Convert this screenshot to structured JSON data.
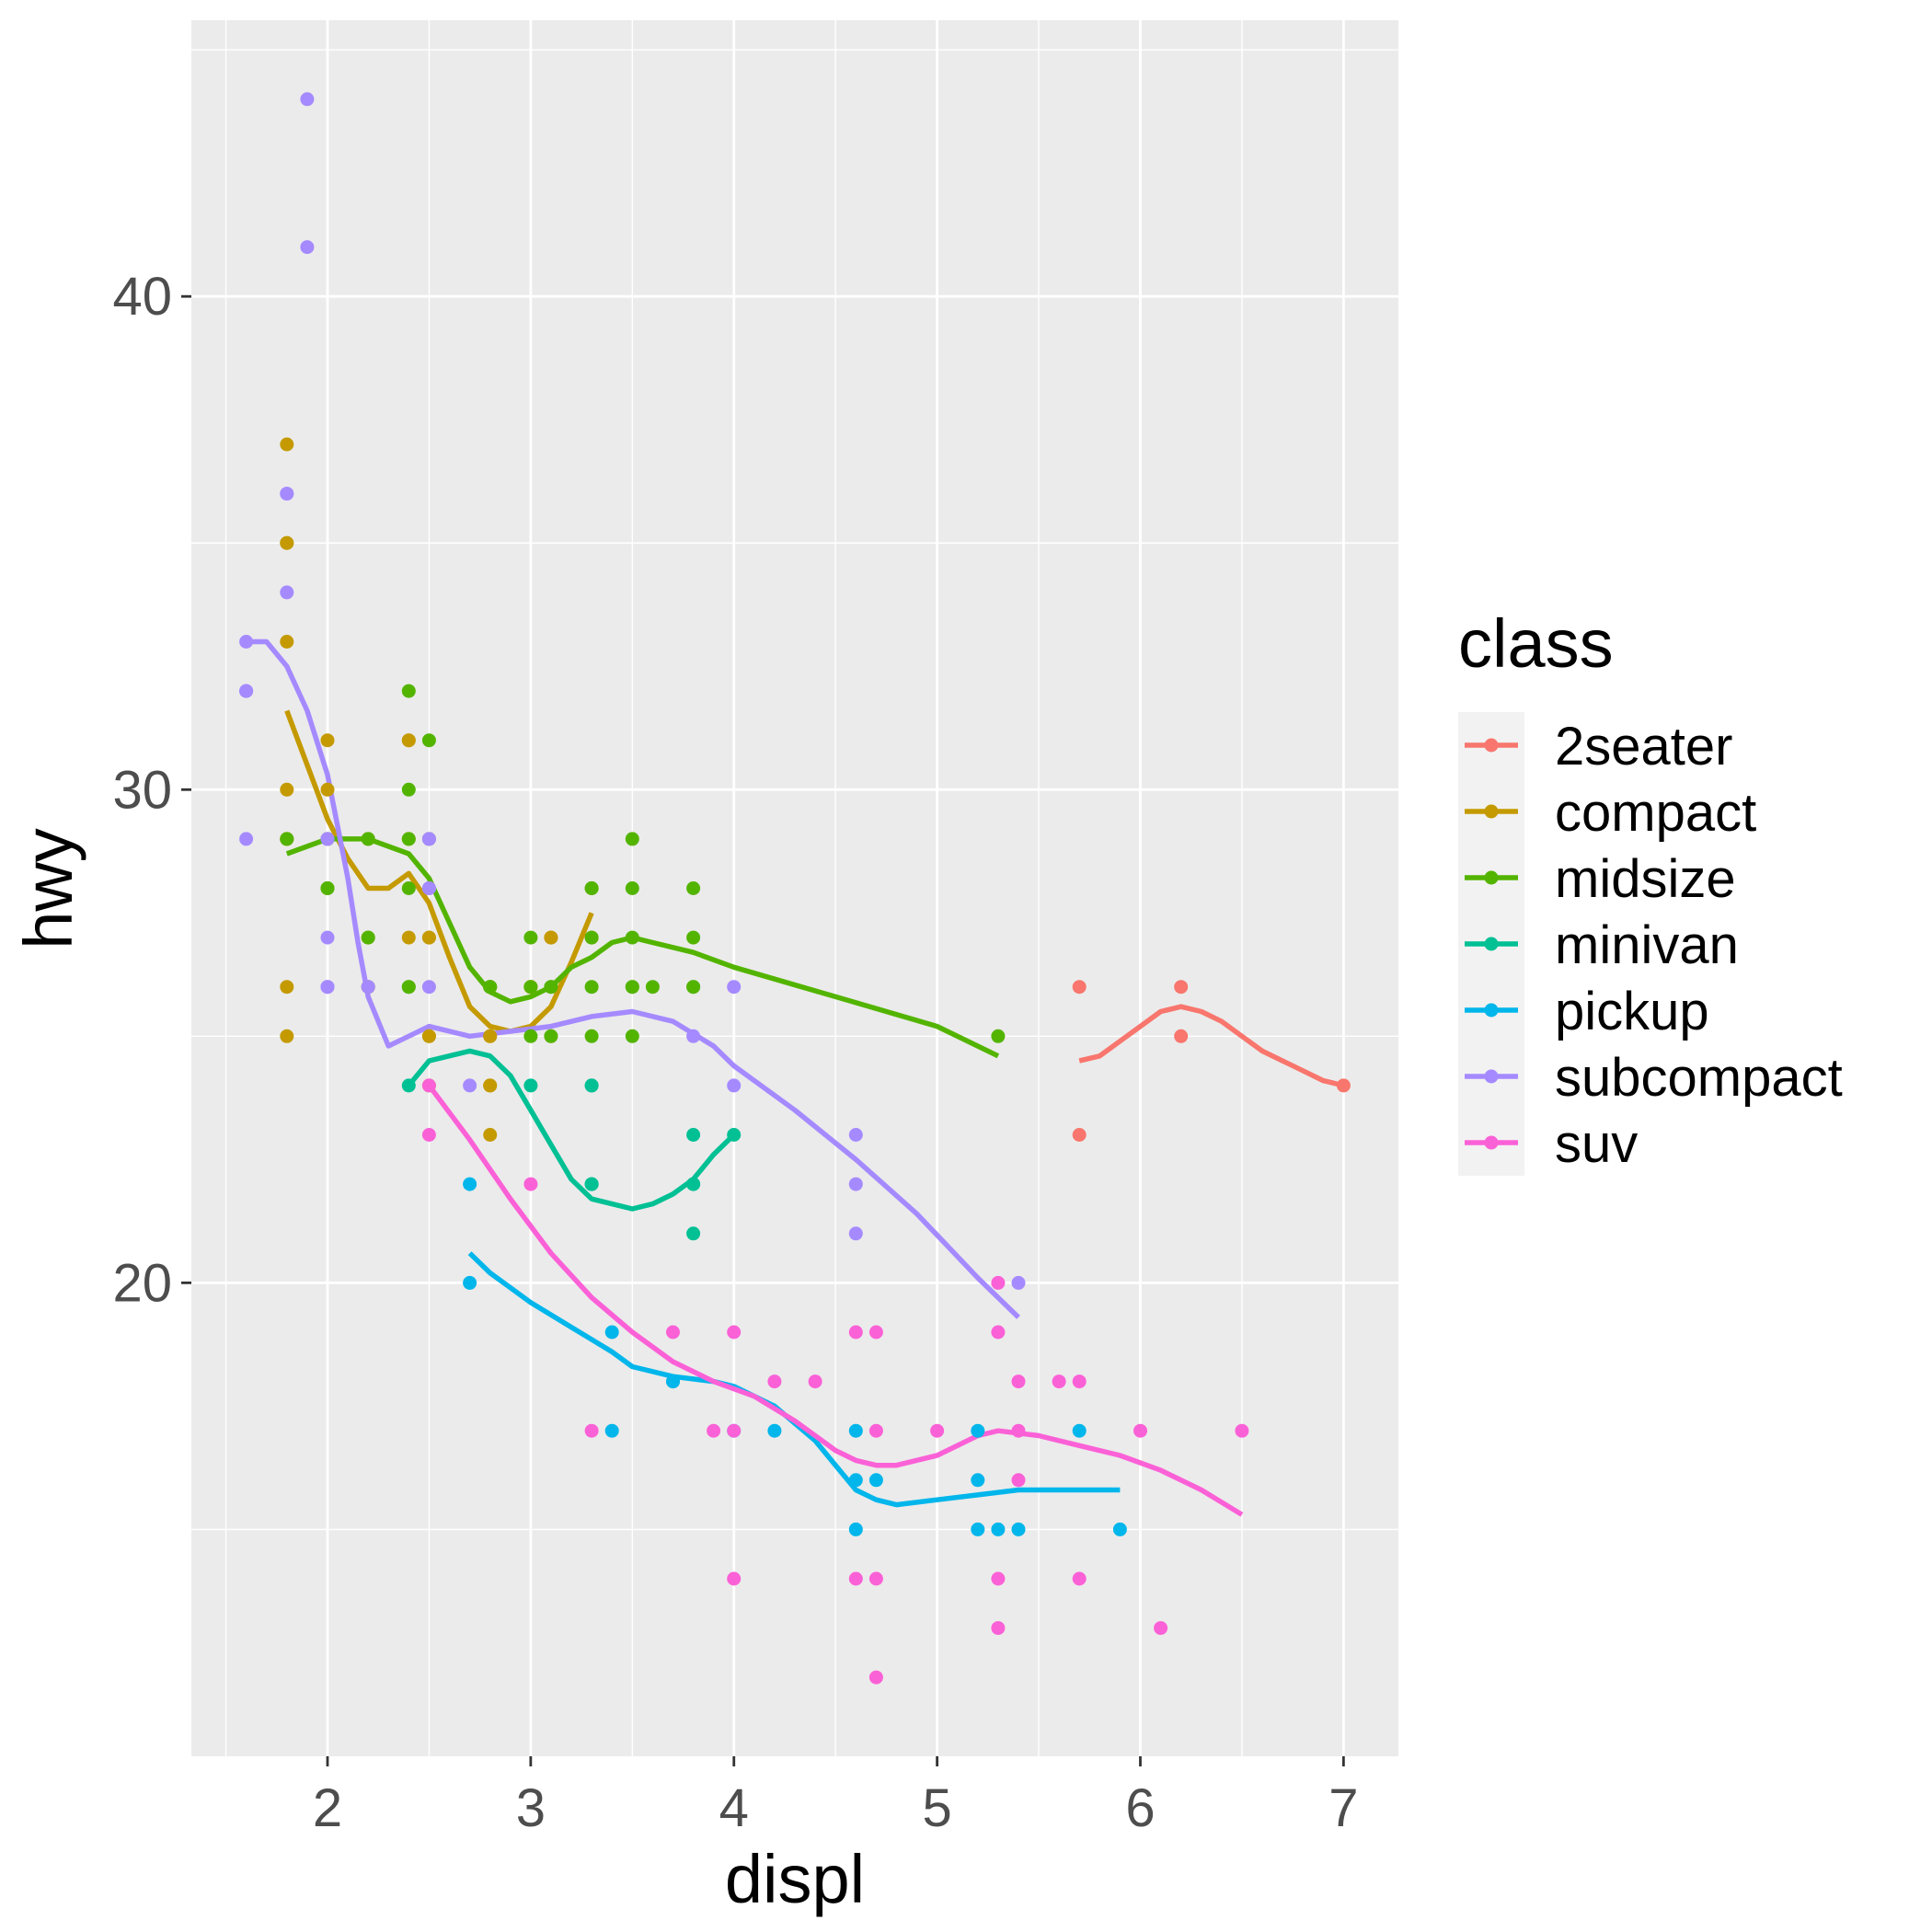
{
  "chart_data": {
    "type": "scatter",
    "xlabel": "displ",
    "ylabel": "hwy",
    "xlim": [
      1.33,
      7.27
    ],
    "ylim": [
      10.4,
      45.6
    ],
    "x_ticks": [
      2,
      3,
      4,
      5,
      6,
      7
    ],
    "y_ticks": [
      20,
      30,
      40
    ],
    "grid": true,
    "legend": {
      "title": "class",
      "position": "right",
      "entries": [
        "2seater",
        "compact",
        "midsize",
        "minivan",
        "pickup",
        "subcompact",
        "suv"
      ]
    },
    "series": [
      {
        "name": "2seater",
        "color": "#F8766D",
        "points": [
          [
            5.7,
            26
          ],
          [
            5.7,
            23
          ],
          [
            6.2,
            26
          ],
          [
            6.2,
            25
          ],
          [
            7.0,
            24
          ]
        ],
        "smooth": [
          [
            5.7,
            24.5
          ],
          [
            5.8,
            24.6
          ],
          [
            5.9,
            24.9
          ],
          [
            6.0,
            25.2
          ],
          [
            6.1,
            25.5
          ],
          [
            6.2,
            25.6
          ],
          [
            6.3,
            25.5
          ],
          [
            6.4,
            25.3
          ],
          [
            6.5,
            25.0
          ],
          [
            6.6,
            24.7
          ],
          [
            6.7,
            24.5
          ],
          [
            6.8,
            24.3
          ],
          [
            6.9,
            24.1
          ],
          [
            7.0,
            24.0
          ]
        ]
      },
      {
        "name": "compact",
        "color": "#C49A00",
        "points": [
          [
            1.8,
            29
          ],
          [
            1.8,
            29
          ],
          [
            2.0,
            31
          ],
          [
            2.0,
            30
          ],
          [
            2.8,
            26
          ],
          [
            2.8,
            26
          ],
          [
            3.1,
            27
          ],
          [
            1.8,
            26
          ],
          [
            1.8,
            25
          ],
          [
            2.0,
            28
          ],
          [
            2.0,
            29
          ],
          [
            2.8,
            25
          ],
          [
            2.8,
            25
          ],
          [
            3.1,
            25
          ],
          [
            2.2,
            27
          ],
          [
            2.2,
            29
          ],
          [
            2.4,
            31
          ],
          [
            2.4,
            31
          ],
          [
            3.0,
            26
          ],
          [
            3.3,
            28
          ],
          [
            3.3,
            27
          ],
          [
            1.8,
            35
          ],
          [
            1.8,
            37
          ],
          [
            1.8,
            35
          ],
          [
            2.4,
            29
          ],
          [
            2.4,
            27
          ],
          [
            2.5,
            27
          ],
          [
            2.5,
            25
          ],
          [
            2.5,
            24
          ],
          [
            2.5,
            25
          ],
          [
            2.8,
            23
          ],
          [
            2.8,
            24
          ],
          [
            3.0,
            26
          ],
          [
            3.0,
            26
          ],
          [
            2.2,
            26
          ],
          [
            2.2,
            26
          ],
          [
            2.5,
            27
          ],
          [
            2.8,
            24
          ],
          [
            3.1,
            27
          ],
          [
            1.8,
            33
          ],
          [
            1.8,
            30
          ]
        ],
        "smooth": [
          [
            1.8,
            31.6
          ],
          [
            1.9,
            30.5
          ],
          [
            2.0,
            29.4
          ],
          [
            2.1,
            28.6
          ],
          [
            2.2,
            28.0
          ],
          [
            2.3,
            28.0
          ],
          [
            2.4,
            28.3
          ],
          [
            2.5,
            27.7
          ],
          [
            2.6,
            26.6
          ],
          [
            2.7,
            25.6
          ],
          [
            2.8,
            25.2
          ],
          [
            2.9,
            25.1
          ],
          [
            3.0,
            25.2
          ],
          [
            3.1,
            25.6
          ],
          [
            3.2,
            26.5
          ],
          [
            3.3,
            27.5
          ]
        ]
      },
      {
        "name": "midsize",
        "color": "#53B400",
        "points": [
          [
            2.4,
            30
          ],
          [
            2.4,
            29
          ],
          [
            3.1,
            26
          ],
          [
            3.5,
            26
          ],
          [
            3.6,
            26
          ],
          [
            2.4,
            32
          ],
          [
            3.0,
            26
          ],
          [
            3.3,
            28
          ],
          [
            3.3,
            27
          ],
          [
            3.5,
            29
          ],
          [
            2.0,
            28
          ],
          [
            2.0,
            29
          ],
          [
            2.8,
            26
          ],
          [
            3.5,
            28
          ],
          [
            1.8,
            29
          ],
          [
            2.0,
            28
          ],
          [
            2.8,
            26
          ],
          [
            3.1,
            25
          ],
          [
            2.4,
            26
          ],
          [
            2.5,
            29
          ],
          [
            3.5,
            26
          ],
          [
            3.8,
            28
          ],
          [
            3.8,
            26
          ],
          [
            2.5,
            31
          ],
          [
            3.0,
            27
          ],
          [
            3.5,
            25
          ],
          [
            5.3,
            25
          ],
          [
            3.8,
            27
          ],
          [
            3.8,
            26
          ],
          [
            2.2,
            29
          ],
          [
            3.3,
            28
          ],
          [
            3.3,
            25
          ],
          [
            3.5,
            27
          ],
          [
            2.4,
            26
          ],
          [
            3.0,
            25
          ],
          [
            2.2,
            27
          ],
          [
            2.4,
            28
          ],
          [
            2.8,
            26
          ],
          [
            3.1,
            26
          ],
          [
            3.3,
            26
          ]
        ],
        "smooth": [
          [
            1.8,
            28.7
          ],
          [
            2.0,
            29.0
          ],
          [
            2.2,
            29.0
          ],
          [
            2.4,
            28.7
          ],
          [
            2.5,
            28.2
          ],
          [
            2.6,
            27.3
          ],
          [
            2.7,
            26.4
          ],
          [
            2.8,
            25.9
          ],
          [
            2.9,
            25.7
          ],
          [
            3.0,
            25.8
          ],
          [
            3.1,
            26.0
          ],
          [
            3.2,
            26.4
          ],
          [
            3.3,
            26.6
          ],
          [
            3.4,
            26.9
          ],
          [
            3.5,
            27.0
          ],
          [
            3.6,
            26.9
          ],
          [
            3.8,
            26.7
          ],
          [
            4.0,
            26.4
          ],
          [
            4.5,
            25.8
          ],
          [
            5.0,
            25.2
          ],
          [
            5.3,
            24.6
          ]
        ]
      },
      {
        "name": "minivan",
        "color": "#00C094",
        "points": [
          [
            2.4,
            24
          ],
          [
            3.0,
            24
          ],
          [
            3.3,
            22
          ],
          [
            3.3,
            22
          ],
          [
            3.3,
            24
          ],
          [
            3.3,
            24
          ],
          [
            3.3,
            22
          ],
          [
            3.8,
            22
          ],
          [
            3.8,
            21
          ],
          [
            3.8,
            22
          ],
          [
            3.8,
            23
          ],
          [
            4.0,
            23
          ]
        ],
        "smooth": [
          [
            2.4,
            24.0
          ],
          [
            2.5,
            24.5
          ],
          [
            2.7,
            24.7
          ],
          [
            2.8,
            24.6
          ],
          [
            2.9,
            24.2
          ],
          [
            3.0,
            23.5
          ],
          [
            3.1,
            22.8
          ],
          [
            3.2,
            22.1
          ],
          [
            3.3,
            21.7
          ],
          [
            3.4,
            21.6
          ],
          [
            3.5,
            21.5
          ],
          [
            3.6,
            21.6
          ],
          [
            3.7,
            21.8
          ],
          [
            3.8,
            22.1
          ],
          [
            3.9,
            22.6
          ],
          [
            4.0,
            23.0
          ]
        ]
      },
      {
        "name": "pickup",
        "color": "#00B6EB",
        "points": [
          [
            2.7,
            20
          ],
          [
            2.7,
            22
          ],
          [
            3.4,
            19
          ],
          [
            3.4,
            17
          ],
          [
            3.7,
            18
          ],
          [
            3.7,
            18
          ],
          [
            4.0,
            17
          ],
          [
            4.2,
            17
          ],
          [
            4.6,
            17
          ],
          [
            4.6,
            16
          ],
          [
            4.7,
            16
          ],
          [
            5.2,
            17
          ],
          [
            5.2,
            15
          ],
          [
            5.2,
            16
          ],
          [
            5.4,
            15
          ],
          [
            5.7,
            17
          ],
          [
            5.9,
            15
          ],
          [
            4.6,
            15
          ],
          [
            5.3,
            15
          ]
        ],
        "smooth": [
          [
            2.7,
            20.6
          ],
          [
            2.8,
            20.2
          ],
          [
            3.0,
            19.6
          ],
          [
            3.2,
            19.1
          ],
          [
            3.4,
            18.6
          ],
          [
            3.5,
            18.3
          ],
          [
            3.7,
            18.1
          ],
          [
            3.9,
            18.0
          ],
          [
            4.0,
            17.9
          ],
          [
            4.2,
            17.5
          ],
          [
            4.4,
            16.8
          ],
          [
            4.5,
            16.3
          ],
          [
            4.6,
            15.8
          ],
          [
            4.7,
            15.6
          ],
          [
            4.8,
            15.5
          ],
          [
            5.0,
            15.6
          ],
          [
            5.2,
            15.7
          ],
          [
            5.4,
            15.8
          ],
          [
            5.6,
            15.8
          ],
          [
            5.9,
            15.8
          ]
        ]
      },
      {
        "name": "subcompact",
        "color": "#A58AFF",
        "points": [
          [
            1.6,
            33
          ],
          [
            1.6,
            32
          ],
          [
            1.6,
            32
          ],
          [
            1.6,
            29
          ],
          [
            1.6,
            32
          ],
          [
            1.8,
            34
          ],
          [
            1.8,
            36
          ],
          [
            1.8,
            36
          ],
          [
            2.0,
            29
          ],
          [
            2.0,
            26
          ],
          [
            2.0,
            27
          ],
          [
            2.2,
            26
          ],
          [
            2.5,
            28
          ],
          [
            2.5,
            26
          ],
          [
            2.5,
            29
          ],
          [
            2.5,
            28
          ],
          [
            2.7,
            24
          ],
          [
            3.8,
            25
          ],
          [
            4.0,
            24
          ],
          [
            4.0,
            26
          ],
          [
            4.6,
            22
          ],
          [
            4.6,
            23
          ],
          [
            4.6,
            21
          ],
          [
            5.4,
            20
          ],
          [
            1.9,
            44
          ],
          [
            1.9,
            41
          ],
          [
            2.0,
            29
          ],
          [
            2.0,
            26
          ],
          [
            2.5,
            29
          ],
          [
            2.5,
            28
          ],
          [
            2.2,
            26
          ],
          [
            2.0,
            26
          ]
        ],
        "smooth": [
          [
            1.6,
            33.0
          ],
          [
            1.7,
            33.0
          ],
          [
            1.8,
            32.5
          ],
          [
            1.9,
            31.6
          ],
          [
            2.0,
            30.3
          ],
          [
            2.1,
            28.2
          ],
          [
            2.15,
            26.9
          ],
          [
            2.2,
            25.8
          ],
          [
            2.3,
            24.8
          ],
          [
            2.4,
            25.0
          ],
          [
            2.5,
            25.2
          ],
          [
            2.7,
            25.0
          ],
          [
            2.9,
            25.1
          ],
          [
            3.1,
            25.2
          ],
          [
            3.3,
            25.4
          ],
          [
            3.5,
            25.5
          ],
          [
            3.7,
            25.3
          ],
          [
            3.9,
            24.8
          ],
          [
            4.0,
            24.4
          ],
          [
            4.3,
            23.5
          ],
          [
            4.6,
            22.5
          ],
          [
            4.9,
            21.4
          ],
          [
            5.2,
            20.1
          ],
          [
            5.4,
            19.3
          ]
        ]
      },
      {
        "name": "suv",
        "color": "#FB61D7",
        "points": [
          [
            2.5,
            24
          ],
          [
            2.5,
            23
          ],
          [
            3.0,
            22
          ],
          [
            3.3,
            17
          ],
          [
            3.7,
            19
          ],
          [
            3.9,
            17
          ],
          [
            4.0,
            19
          ],
          [
            4.0,
            17
          ],
          [
            4.0,
            14
          ],
          [
            4.2,
            18
          ],
          [
            4.4,
            18
          ],
          [
            4.6,
            19
          ],
          [
            4.6,
            14
          ],
          [
            4.7,
            19
          ],
          [
            4.7,
            17
          ],
          [
            4.7,
            14
          ],
          [
            4.7,
            12
          ],
          [
            5.0,
            17
          ],
          [
            5.3,
            20
          ],
          [
            5.3,
            19
          ],
          [
            5.3,
            14
          ],
          [
            5.3,
            13
          ],
          [
            5.4,
            18
          ],
          [
            5.4,
            17
          ],
          [
            5.4,
            16
          ],
          [
            5.6,
            18
          ],
          [
            5.7,
            18
          ],
          [
            5.7,
            14
          ],
          [
            6.0,
            17
          ],
          [
            6.1,
            13
          ],
          [
            6.5,
            17
          ]
        ],
        "smooth": [
          [
            2.5,
            24.0
          ],
          [
            2.7,
            22.9
          ],
          [
            2.9,
            21.7
          ],
          [
            3.1,
            20.6
          ],
          [
            3.3,
            19.7
          ],
          [
            3.5,
            19.0
          ],
          [
            3.7,
            18.4
          ],
          [
            3.9,
            18.0
          ],
          [
            4.1,
            17.7
          ],
          [
            4.3,
            17.2
          ],
          [
            4.5,
            16.6
          ],
          [
            4.6,
            16.4
          ],
          [
            4.7,
            16.3
          ],
          [
            4.8,
            16.3
          ],
          [
            5.0,
            16.5
          ],
          [
            5.2,
            16.9
          ],
          [
            5.3,
            17.0
          ],
          [
            5.5,
            16.9
          ],
          [
            5.7,
            16.7
          ],
          [
            5.9,
            16.5
          ],
          [
            6.1,
            16.2
          ],
          [
            6.3,
            15.8
          ],
          [
            6.5,
            15.3
          ]
        ]
      }
    ]
  }
}
